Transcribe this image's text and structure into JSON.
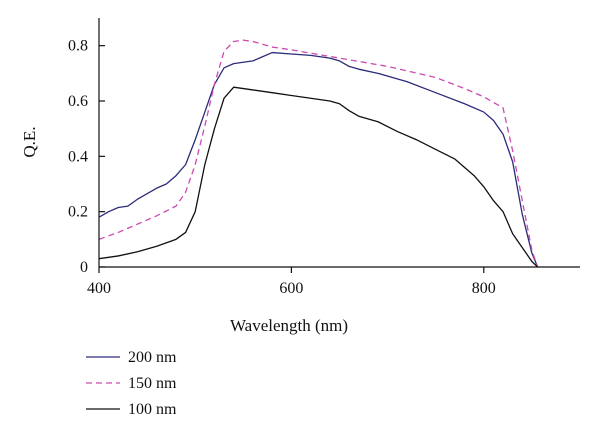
{
  "chart_data": {
    "type": "line",
    "xlabel": "Wavelength (nm)",
    "ylabel": "Q.E.",
    "xlim": [
      400,
      900
    ],
    "ylim": [
      0,
      0.9
    ],
    "x_ticks": [
      400,
      600,
      800
    ],
    "x_tick_labels": [
      "400",
      "600",
      "800"
    ],
    "y_ticks": [
      0,
      0.2,
      0.4,
      0.6,
      0.8
    ],
    "y_tick_labels": [
      "0",
      "0.2",
      "0.4",
      "0.6",
      "0.8"
    ],
    "grid": false,
    "legend_position": "bottom-left",
    "series": [
      {
        "name": "200 nm",
        "color": "#2b2b7a",
        "dash": "solid",
        "x": [
          400,
          410,
          420,
          430,
          440,
          450,
          460,
          470,
          480,
          490,
          500,
          510,
          520,
          530,
          540,
          560,
          570,
          580,
          600,
          620,
          640,
          650,
          660,
          670,
          690,
          720,
          750,
          780,
          800,
          810,
          820,
          830,
          840,
          850,
          856
        ],
        "y": [
          0.18,
          0.2,
          0.215,
          0.22,
          0.245,
          0.265,
          0.285,
          0.3,
          0.33,
          0.37,
          0.46,
          0.56,
          0.66,
          0.72,
          0.735,
          0.745,
          0.76,
          0.775,
          0.77,
          0.765,
          0.755,
          0.745,
          0.725,
          0.715,
          0.7,
          0.67,
          0.63,
          0.59,
          0.56,
          0.53,
          0.48,
          0.38,
          0.19,
          0.05,
          0.0
        ]
      },
      {
        "name": "150 nm",
        "color": "#cc4ab0",
        "dash": "dashed",
        "x": [
          400,
          420,
          440,
          460,
          480,
          490,
          500,
          510,
          520,
          530,
          540,
          550,
          560,
          580,
          600,
          650,
          700,
          750,
          780,
          800,
          820,
          830,
          840,
          850,
          856
        ],
        "y": [
          0.1,
          0.125,
          0.155,
          0.185,
          0.22,
          0.27,
          0.37,
          0.51,
          0.66,
          0.78,
          0.815,
          0.82,
          0.815,
          0.795,
          0.785,
          0.755,
          0.725,
          0.685,
          0.645,
          0.615,
          0.575,
          0.42,
          0.24,
          0.06,
          0.0
        ]
      },
      {
        "name": "100 nm",
        "color": "#111111",
        "dash": "solid",
        "x": [
          400,
          420,
          440,
          460,
          480,
          490,
          500,
          510,
          520,
          530,
          540,
          550,
          560,
          580,
          600,
          620,
          640,
          650,
          660,
          670,
          690,
          710,
          730,
          750,
          770,
          790,
          800,
          810,
          820,
          830,
          840,
          850,
          856
        ],
        "y": [
          0.03,
          0.04,
          0.055,
          0.075,
          0.1,
          0.125,
          0.2,
          0.37,
          0.5,
          0.61,
          0.65,
          0.645,
          0.64,
          0.63,
          0.62,
          0.61,
          0.6,
          0.59,
          0.565,
          0.545,
          0.525,
          0.49,
          0.46,
          0.425,
          0.39,
          0.33,
          0.29,
          0.24,
          0.2,
          0.12,
          0.07,
          0.02,
          0.0
        ]
      }
    ]
  }
}
